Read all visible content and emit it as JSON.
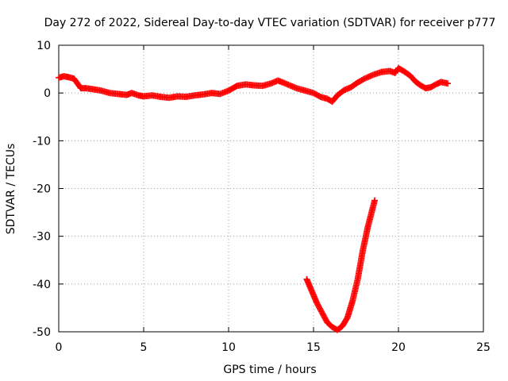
{
  "chart_data": {
    "type": "scatter",
    "title": "Day 272 of 2022, Sidereal Day-to-day VTEC variation (SDTVAR) for receiver p777",
    "xlabel": "GPS time / hours",
    "ylabel": "SDTVAR / TECUs",
    "xlim": [
      0,
      25
    ],
    "ylim": [
      -50,
      10
    ],
    "xticks": [
      0,
      5,
      10,
      15,
      20,
      25
    ],
    "yticks": [
      10,
      0,
      -10,
      -20,
      -30,
      -40,
      -50
    ],
    "xtick_labels": [
      "0",
      "5",
      "10",
      "15",
      "20",
      "25"
    ],
    "ytick_labels": [
      "10",
      "0",
      "-10",
      "-20",
      "-30",
      "-40",
      "-50"
    ],
    "grid": true,
    "marker": "+",
    "color": "#ff0000",
    "series": [
      {
        "name": "main track",
        "x": [
          0.0,
          0.3,
          0.6,
          0.9,
          1.1,
          1.3,
          1.6,
          2.0,
          2.5,
          3.0,
          3.5,
          4.0,
          4.3,
          4.7,
          5.0,
          5.5,
          6.0,
          6.5,
          7.0,
          7.5,
          8.0,
          8.5,
          9.0,
          9.5,
          10.0,
          10.5,
          11.0,
          11.5,
          12.0,
          12.5,
          12.9,
          13.2,
          13.6,
          14.0,
          14.5,
          15.0,
          15.4,
          15.8,
          16.1,
          16.4,
          16.8,
          17.2,
          17.6,
          18.0,
          18.5,
          19.0,
          19.5,
          19.8,
          20.0,
          20.3,
          20.7,
          21.0,
          21.3,
          21.6,
          21.9,
          22.2,
          22.5,
          22.9
        ],
        "y": [
          3.2,
          3.5,
          3.3,
          3.0,
          2.0,
          1.0,
          1.0,
          0.8,
          0.5,
          0.0,
          -0.2,
          -0.4,
          0.0,
          -0.5,
          -0.7,
          -0.5,
          -0.8,
          -1.0,
          -0.7,
          -0.8,
          -0.5,
          -0.3,
          0.0,
          -0.2,
          0.5,
          1.5,
          1.8,
          1.6,
          1.5,
          2.0,
          2.6,
          2.2,
          1.6,
          1.0,
          0.5,
          0.0,
          -0.8,
          -1.2,
          -1.8,
          -0.5,
          0.6,
          1.2,
          2.2,
          3.0,
          3.8,
          4.4,
          4.6,
          4.2,
          5.2,
          4.6,
          3.6,
          2.4,
          1.6,
          1.0,
          1.2,
          1.8,
          2.3,
          2.0
        ]
      },
      {
        "name": "dip track",
        "x": [
          14.6,
          14.9,
          15.2,
          15.5,
          15.8,
          16.1,
          16.4,
          16.7,
          17.0,
          17.3,
          17.6,
          17.9,
          18.2,
          18.6
        ],
        "y": [
          -39.0,
          -41.5,
          -44.0,
          -46.0,
          -48.0,
          -49.0,
          -49.6,
          -48.8,
          -47.0,
          -43.5,
          -39.0,
          -33.0,
          -28.0,
          -22.5
        ]
      }
    ]
  }
}
